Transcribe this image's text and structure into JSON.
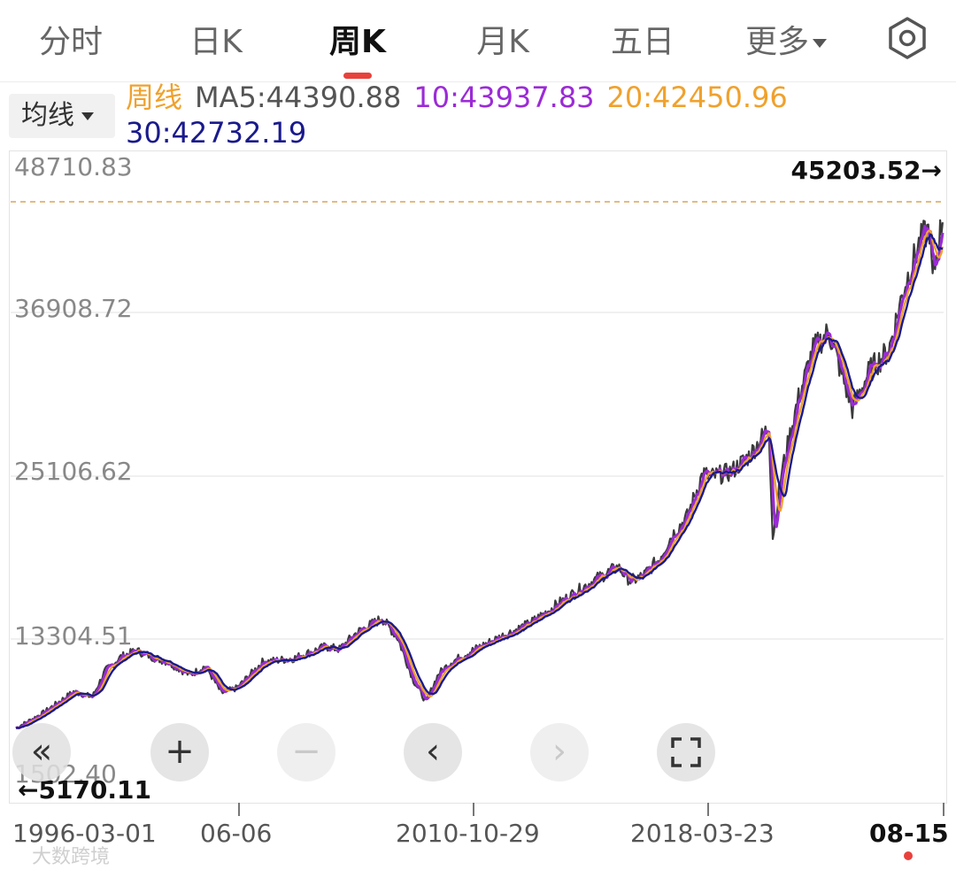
{
  "tabs": [
    {
      "label": "分时",
      "active": false
    },
    {
      "label": "日K",
      "active": false
    },
    {
      "label": "周K",
      "active": true
    },
    {
      "label": "月K",
      "active": false
    },
    {
      "label": "五日",
      "active": false
    },
    {
      "label": "更多",
      "active": false
    }
  ],
  "settings_icon": "gear-icon",
  "ma_selector": {
    "label": "均线"
  },
  "legend": {
    "period": "周线",
    "ma5": "MA5:44390.88",
    "ma10": "10:43937.83",
    "ma20": "20:42450.96",
    "ma30": "30:42732.19"
  },
  "colors": {
    "period": "#f0a12c",
    "ma5": "#555555",
    "ma10": "#9b2bd6",
    "ma20": "#f0a12c",
    "ma30": "#1a1a8c",
    "price": "#3a3a3a",
    "accent": "#e8413b"
  },
  "chart_data": {
    "type": "line",
    "title": "",
    "y_ticks": [
      "48710.83",
      "36908.72",
      "25106.62",
      "13304.51",
      "1502.40"
    ],
    "ylim": [
      1502.4,
      48710.83
    ],
    "max_marker": "45203.52→",
    "min_marker": "←5170.11",
    "x_ticks": [
      "1996-03-01",
      "06-06",
      "2010-10-29",
      "2018-03-23",
      "08-15"
    ],
    "grid": true,
    "series": [
      {
        "x": [
          1996.17,
          1997.0,
          1998.0,
          1998.6,
          1999.0,
          1999.5,
          2000.0,
          2000.5,
          2001.0,
          2001.7,
          2002.2,
          2002.7,
          2003.2,
          2004.0,
          2005.0,
          2006.0,
          2006.45,
          2007.0,
          2007.8,
          2008.3,
          2008.8,
          2009.2,
          2009.6,
          2010.0,
          2010.83,
          2011.6,
          2012.5,
          2013.5,
          2014.5,
          2015.3,
          2015.7,
          2016.1,
          2016.6,
          2017.0,
          2017.5,
          2018.0,
          2018.23,
          2018.9,
          2019.5,
          2020.1,
          2020.22,
          2020.5,
          2021.0,
          2021.5,
          2022.0,
          2022.75,
          2023.3,
          2023.9,
          2024.4,
          2024.9,
          2025.2,
          2025.3,
          2025.62
        ],
        "values": [
          5170,
          6300,
          8000,
          7600,
          9600,
          10700,
          11200,
          10700,
          10300,
          9300,
          10000,
          7900,
          8300,
          10300,
          10600,
          11500,
          11300,
          12600,
          13700,
          12200,
          8900,
          7200,
          9400,
          10300,
          11400,
          12300,
          13300,
          15000,
          16600,
          17700,
          16600,
          17000,
          18300,
          20100,
          21600,
          25000,
          24700,
          25100,
          26400,
          28600,
          20000,
          25000,
          30500,
          34600,
          36000,
          30000,
          33000,
          34500,
          39500,
          43000,
          44000,
          40000,
          44900
        ]
      }
    ]
  },
  "nav_buttons": [
    {
      "name": "scroll-left-fast-button",
      "glyph": "«",
      "disabled": false
    },
    {
      "name": "zoom-in-button",
      "glyph": "+",
      "disabled": false
    },
    {
      "name": "zoom-out-button",
      "glyph": "−",
      "disabled": true
    },
    {
      "name": "step-left-button",
      "glyph": "‹",
      "disabled": false
    },
    {
      "name": "step-right-button",
      "glyph": "›",
      "disabled": true
    },
    {
      "name": "fullscreen-button",
      "glyph": "fullscreen-icon",
      "disabled": false
    }
  ],
  "watermark": "大数跨境"
}
